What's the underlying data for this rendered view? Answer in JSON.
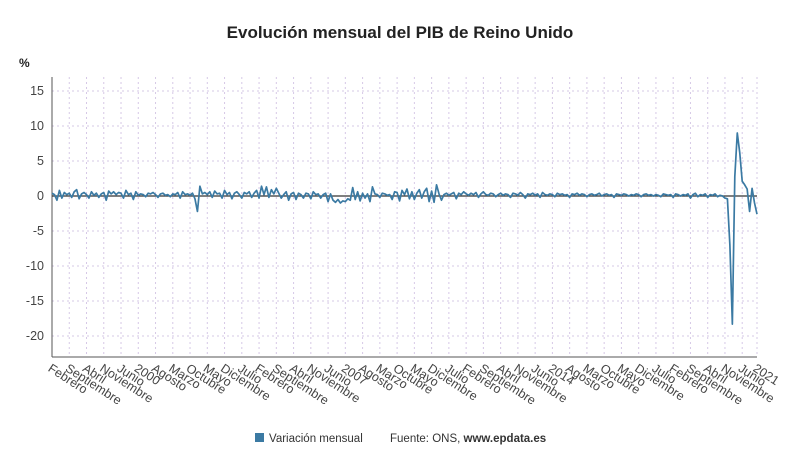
{
  "chart_data": {
    "type": "line",
    "title": "Evolución mensual del PIB de Reino Unido",
    "ylabel": "%",
    "xlabel": "",
    "ylim": [
      -23,
      17
    ],
    "yticks": [
      15,
      10,
      5,
      0,
      -5,
      -10,
      -15,
      -20
    ],
    "grid": true,
    "legend": "bottom-center",
    "x_tick_labels": [
      "Febrero",
      "Septiembre",
      "Abril",
      "Noviembre",
      "Junio",
      "2000",
      "Agosto",
      "Marzo",
      "Octubre",
      "Mayo",
      "Diciembre",
      "Julio",
      "Febrero",
      "Septiembre",
      "Abril",
      "Noviembre",
      "Junio",
      "2007",
      "Agosto",
      "Marzo",
      "Octubre",
      "Mayo",
      "Diciembre",
      "Julio",
      "Febrero",
      "Septiembre",
      "Abril",
      "Noviembre",
      "Junio",
      "2014",
      "Agosto",
      "Marzo",
      "Octubre",
      "Mayo",
      "Diciembre",
      "Julio",
      "Febrero",
      "Septiembre",
      "Abril",
      "Noviembre",
      "Junio",
      "2021"
    ],
    "x_tick_positions": [
      0,
      7,
      14,
      21,
      28,
      35,
      42,
      49,
      56,
      63,
      70,
      77,
      84,
      91,
      98,
      105,
      112,
      119,
      126,
      133,
      140,
      147,
      154,
      161,
      168,
      175,
      182,
      189,
      196,
      203,
      210,
      217,
      224,
      231,
      238,
      245,
      252,
      259,
      266,
      273,
      280,
      286
    ],
    "n_points": 287,
    "series": [
      {
        "name": "Variación mensual",
        "color": "#3b7aa3",
        "anchors": [
          [
            0,
            0.4
          ],
          [
            1,
            0.2
          ],
          [
            2,
            -0.6
          ],
          [
            3,
            0.8
          ],
          [
            4,
            -0.3
          ],
          [
            5,
            0.5
          ],
          [
            6,
            0.2
          ],
          [
            7,
            0.4
          ],
          [
            8,
            -0.2
          ],
          [
            9,
            0.6
          ],
          [
            10,
            0.9
          ],
          [
            11,
            -0.4
          ],
          [
            12,
            0.3
          ],
          [
            13,
            0.5
          ],
          [
            14,
            0.2
          ],
          [
            15,
            -0.3
          ],
          [
            16,
            0.6
          ],
          [
            17,
            0.1
          ],
          [
            18,
            0.4
          ],
          [
            19,
            -0.2
          ],
          [
            20,
            0.3
          ],
          [
            21,
            0.5
          ],
          [
            22,
            -0.6
          ],
          [
            23,
            0.7
          ],
          [
            24,
            0.3
          ],
          [
            25,
            0.6
          ],
          [
            26,
            0.2
          ],
          [
            27,
            0.5
          ],
          [
            28,
            0.4
          ],
          [
            29,
            -0.3
          ],
          [
            30,
            0.8
          ],
          [
            31,
            0.2
          ],
          [
            32,
            0.4
          ],
          [
            33,
            -0.5
          ],
          [
            34,
            0.6
          ],
          [
            35,
            0.1
          ],
          [
            36,
            0.3
          ],
          [
            37,
            0.2
          ],
          [
            38,
            -0.1
          ],
          [
            39,
            0.4
          ],
          [
            40,
            0.3
          ],
          [
            41,
            0.5
          ],
          [
            42,
            0.2
          ],
          [
            43,
            -0.2
          ],
          [
            44,
            0.3
          ],
          [
            45,
            0.4
          ],
          [
            46,
            0.1
          ],
          [
            47,
            0.2
          ],
          [
            48,
            -0.1
          ],
          [
            49,
            0.3
          ],
          [
            50,
            0.2
          ],
          [
            51,
            0.5
          ],
          [
            52,
            -0.3
          ],
          [
            53,
            0.6
          ],
          [
            54,
            0.2
          ],
          [
            55,
            0.3
          ],
          [
            56,
            0.1
          ],
          [
            57,
            0.4
          ],
          [
            58,
            -0.4
          ],
          [
            59,
            -2.2
          ],
          [
            60,
            1.4
          ],
          [
            61,
            0.3
          ],
          [
            62,
            0.5
          ],
          [
            63,
            0.2
          ],
          [
            64,
            0.6
          ],
          [
            65,
            -0.2
          ],
          [
            66,
            0.7
          ],
          [
            67,
            0.3
          ],
          [
            68,
            0.4
          ],
          [
            69,
            -0.3
          ],
          [
            70,
            0.8
          ],
          [
            71,
            0.2
          ],
          [
            72,
            0.5
          ],
          [
            73,
            -0.4
          ],
          [
            74,
            0.4
          ],
          [
            75,
            0.6
          ],
          [
            76,
            0.2
          ],
          [
            77,
            -0.3
          ],
          [
            78,
            0.5
          ],
          [
            79,
            0.3
          ],
          [
            80,
            0.6
          ],
          [
            81,
            -0.2
          ],
          [
            82,
            0.4
          ],
          [
            83,
            0.8
          ],
          [
            84,
            -0.3
          ],
          [
            85,
            1.4
          ],
          [
            86,
            0.2
          ],
          [
            87,
            1.3
          ],
          [
            88,
            -0.2
          ],
          [
            89,
            0.9
          ],
          [
            90,
            0.3
          ],
          [
            91,
            1.1
          ],
          [
            92,
            0.4
          ],
          [
            93,
            -0.3
          ],
          [
            94,
            0.2
          ],
          [
            95,
            0.6
          ],
          [
            96,
            -0.6
          ],
          [
            97,
            0.3
          ],
          [
            98,
            0.5
          ],
          [
            99,
            -0.5
          ],
          [
            100,
            0.4
          ],
          [
            101,
            0.2
          ],
          [
            102,
            -0.3
          ],
          [
            103,
            0.4
          ],
          [
            104,
            0.3
          ],
          [
            105,
            -0.4
          ],
          [
            106,
            0.6
          ],
          [
            107,
            0.2
          ],
          [
            108,
            0.3
          ],
          [
            109,
            -0.3
          ],
          [
            110,
            0.2
          ],
          [
            111,
            0.4
          ],
          [
            112,
            -0.8
          ],
          [
            113,
            0.3
          ],
          [
            114,
            -0.6
          ],
          [
            115,
            -0.9
          ],
          [
            116,
            -0.5
          ],
          [
            117,
            -1.0
          ],
          [
            118,
            -0.7
          ],
          [
            119,
            -0.8
          ],
          [
            120,
            -0.4
          ],
          [
            121,
            -0.6
          ],
          [
            122,
            1.2
          ],
          [
            123,
            -0.5
          ],
          [
            124,
            0.6
          ],
          [
            125,
            -0.7
          ],
          [
            126,
            0.4
          ],
          [
            127,
            -0.3
          ],
          [
            128,
            0.3
          ],
          [
            129,
            -0.8
          ],
          [
            130,
            1.3
          ],
          [
            131,
            0.3
          ],
          [
            132,
            0.2
          ],
          [
            133,
            -0.2
          ],
          [
            134,
            0.4
          ],
          [
            135,
            0.3
          ],
          [
            136,
            0.1
          ],
          [
            137,
            0.2
          ],
          [
            138,
            -0.5
          ],
          [
            139,
            0.6
          ],
          [
            140,
            0.5
          ],
          [
            141,
            -0.7
          ],
          [
            142,
            0.8
          ],
          [
            143,
            0.2
          ],
          [
            144,
            1.0
          ],
          [
            145,
            -0.4
          ],
          [
            146,
            0.6
          ],
          [
            147,
            -0.5
          ],
          [
            148,
            0.4
          ],
          [
            149,
            0.9
          ],
          [
            150,
            -0.3
          ],
          [
            151,
            0.6
          ],
          [
            152,
            1.1
          ],
          [
            153,
            -0.8
          ],
          [
            154,
            0.7
          ],
          [
            155,
            -0.9
          ],
          [
            156,
            1.6
          ],
          [
            157,
            0.3
          ],
          [
            158,
            -0.6
          ],
          [
            159,
            0.2
          ],
          [
            160,
            0.4
          ],
          [
            161,
            0.1
          ],
          [
            162,
            0.3
          ],
          [
            163,
            0.5
          ],
          [
            164,
            -0.4
          ],
          [
            165,
            0.4
          ],
          [
            166,
            0.2
          ],
          [
            167,
            0.6
          ],
          [
            168,
            0.3
          ],
          [
            169,
            0.1
          ],
          [
            170,
            0.4
          ],
          [
            171,
            0.2
          ],
          [
            172,
            0.5
          ],
          [
            173,
            -0.2
          ],
          [
            174,
            0.3
          ],
          [
            175,
            0.6
          ],
          [
            176,
            0.2
          ],
          [
            177,
            0.1
          ],
          [
            178,
            0.4
          ],
          [
            179,
            0.3
          ],
          [
            180,
            -0.1
          ],
          [
            181,
            0.2
          ],
          [
            182,
            0.4
          ],
          [
            183,
            0.1
          ],
          [
            184,
            0.3
          ],
          [
            185,
            0.2
          ],
          [
            186,
            -0.2
          ],
          [
            187,
            0.4
          ],
          [
            188,
            0.3
          ],
          [
            189,
            0.1
          ],
          [
            190,
            0.5
          ],
          [
            191,
            0.2
          ],
          [
            192,
            -0.3
          ],
          [
            193,
            0.3
          ],
          [
            194,
            0.2
          ],
          [
            195,
            0.4
          ],
          [
            196,
            0.1
          ],
          [
            197,
            0.3
          ],
          [
            198,
            -0.2
          ],
          [
            199,
            0.5
          ],
          [
            200,
            0.2
          ],
          [
            201,
            0.1
          ],
          [
            202,
            0.3
          ],
          [
            203,
            0.2
          ],
          [
            204,
            -0.1
          ],
          [
            205,
            0.4
          ],
          [
            206,
            0.2
          ],
          [
            207,
            0.3
          ],
          [
            208,
            0.1
          ],
          [
            209,
            0.2
          ],
          [
            210,
            -0.2
          ],
          [
            211,
            0.3
          ],
          [
            212,
            0.2
          ],
          [
            213,
            0.4
          ],
          [
            214,
            0.1
          ],
          [
            215,
            0.3
          ],
          [
            216,
            0.2
          ],
          [
            217,
            -0.1
          ],
          [
            218,
            0.2
          ],
          [
            219,
            0.3
          ],
          [
            220,
            0.1
          ],
          [
            221,
            0.2
          ],
          [
            222,
            0.4
          ],
          [
            223,
            0.0
          ],
          [
            224,
            0.2
          ],
          [
            225,
            0.3
          ],
          [
            226,
            0.1
          ],
          [
            227,
            0.2
          ],
          [
            228,
            -0.2
          ],
          [
            229,
            0.3
          ],
          [
            230,
            0.2
          ],
          [
            231,
            0.1
          ],
          [
            232,
            0.3
          ],
          [
            233,
            0.2
          ],
          [
            234,
            0.0
          ],
          [
            235,
            0.2
          ],
          [
            236,
            0.1
          ],
          [
            237,
            0.3
          ],
          [
            238,
            0.2
          ],
          [
            239,
            -0.1
          ],
          [
            240,
            0.2
          ],
          [
            241,
            0.3
          ],
          [
            242,
            0.1
          ],
          [
            243,
            0.2
          ],
          [
            244,
            0.0
          ],
          [
            245,
            0.2
          ],
          [
            246,
            0.1
          ],
          [
            247,
            -0.1
          ],
          [
            248,
            0.3
          ],
          [
            249,
            0.2
          ],
          [
            250,
            0.1
          ],
          [
            251,
            0.2
          ],
          [
            252,
            -0.2
          ],
          [
            253,
            0.3
          ],
          [
            254,
            0.2
          ],
          [
            255,
            0.0
          ],
          [
            256,
            0.2
          ],
          [
            257,
            0.1
          ],
          [
            258,
            0.3
          ],
          [
            259,
            -0.3
          ],
          [
            260,
            0.2
          ],
          [
            261,
            0.4
          ],
          [
            262,
            -0.1
          ],
          [
            263,
            0.2
          ],
          [
            264,
            0.1
          ],
          [
            265,
            0.3
          ],
          [
            266,
            -0.2
          ],
          [
            267,
            0.2
          ],
          [
            268,
            0.1
          ],
          [
            269,
            0.3
          ],
          [
            270,
            -0.1
          ],
          [
            271,
            0.1
          ],
          [
            272,
            0.0
          ],
          [
            273,
            -0.3
          ],
          [
            274,
            -0.4
          ],
          [
            275,
            -7.0
          ],
          [
            276,
            -18.3
          ],
          [
            277,
            2.8
          ],
          [
            278,
            9.0
          ],
          [
            279,
            6.2
          ],
          [
            280,
            2.1
          ],
          [
            281,
            1.6
          ],
          [
            282,
            1.0
          ],
          [
            283,
            -2.2
          ],
          [
            284,
            1.1
          ],
          [
            285,
            -1.0
          ],
          [
            286,
            -2.6
          ]
        ]
      }
    ]
  },
  "legend": {
    "label": "Variación mensual"
  },
  "source": {
    "prefix": "Fuente: ONS, ",
    "site": "www.epdata.es"
  }
}
